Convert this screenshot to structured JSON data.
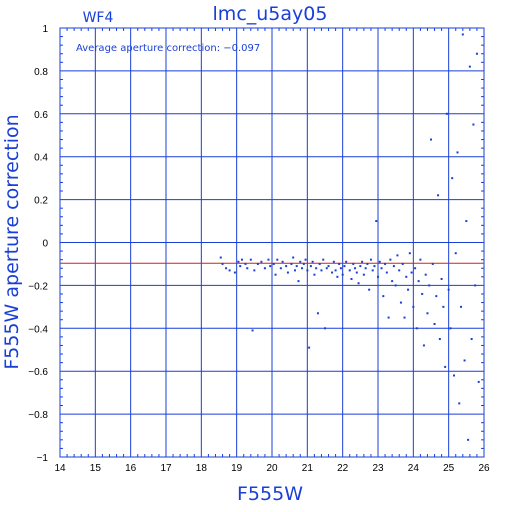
{
  "chart_data": {
    "type": "scatter",
    "title": "lmc_u5ay05",
    "panel_label": "WF4",
    "annotation": "Average aperture correction: −0.097",
    "xlabel": "F555W",
    "ylabel": "F555W aperture correction",
    "xlim": [
      14,
      26
    ],
    "ylim": [
      -1,
      1
    ],
    "x_ticks": [
      "14",
      "15",
      "16",
      "17",
      "18",
      "19",
      "20",
      "21",
      "22",
      "23",
      "24",
      "25",
      "26"
    ],
    "y_ticks": [
      "−1",
      "−0.8",
      "−0.6",
      "−0.4",
      "−0.2",
      "0",
      "0.2",
      "0.4",
      "0.6",
      "0.8",
      "1"
    ],
    "reference_line": {
      "y": -0.097,
      "color": "#d22020"
    },
    "grid": true,
    "colors": {
      "points": "#1a3fd6",
      "grid": "#1a3fd6",
      "title": "#1a3fd6",
      "axes": "#1a3fd6"
    },
    "series": [
      {
        "points": [
          [
            18.55,
            -0.07
          ],
          [
            18.6,
            -0.1
          ],
          [
            18.7,
            -0.12
          ],
          [
            18.8,
            -0.13
          ],
          [
            18.95,
            -0.14
          ],
          [
            19.05,
            -0.09
          ],
          [
            19.1,
            -0.11
          ],
          [
            19.15,
            -0.08
          ],
          [
            19.25,
            -0.1
          ],
          [
            19.3,
            -0.12
          ],
          [
            19.4,
            -0.08
          ],
          [
            19.45,
            -0.41
          ],
          [
            19.5,
            -0.13
          ],
          [
            19.6,
            -0.1
          ],
          [
            19.7,
            -0.09
          ],
          [
            19.8,
            -0.12
          ],
          [
            19.9,
            -0.08
          ],
          [
            19.95,
            -0.11
          ],
          [
            20.05,
            -0.1
          ],
          [
            20.1,
            -0.15
          ],
          [
            20.15,
            -0.08
          ],
          [
            20.25,
            -0.12
          ],
          [
            20.3,
            -0.09
          ],
          [
            20.4,
            -0.11
          ],
          [
            20.45,
            -0.14
          ],
          [
            20.55,
            -0.1
          ],
          [
            20.6,
            -0.07
          ],
          [
            20.65,
            -0.13
          ],
          [
            20.7,
            -0.11
          ],
          [
            20.75,
            -0.18
          ],
          [
            20.8,
            -0.09
          ],
          [
            20.85,
            -0.12
          ],
          [
            20.9,
            -0.1
          ],
          [
            20.95,
            -0.08
          ],
          [
            21.0,
            -0.13
          ],
          [
            21.05,
            -0.49
          ],
          [
            21.1,
            -0.11
          ],
          [
            21.15,
            -0.09
          ],
          [
            21.2,
            -0.15
          ],
          [
            21.25,
            -0.12
          ],
          [
            21.3,
            -0.33
          ],
          [
            21.35,
            -0.1
          ],
          [
            21.4,
            -0.13
          ],
          [
            21.45,
            -0.08
          ],
          [
            21.5,
            -0.4
          ],
          [
            21.55,
            -0.12
          ],
          [
            21.6,
            -0.11
          ],
          [
            21.7,
            -0.14
          ],
          [
            21.75,
            -0.09
          ],
          [
            21.8,
            -0.13
          ],
          [
            21.85,
            -0.16
          ],
          [
            21.9,
            -0.1
          ],
          [
            21.95,
            -0.12
          ],
          [
            22.0,
            -0.15
          ],
          [
            22.05,
            -0.11
          ],
          [
            22.1,
            -0.09
          ],
          [
            22.2,
            -0.13
          ],
          [
            22.25,
            -0.17
          ],
          [
            22.3,
            -0.1
          ],
          [
            22.35,
            -0.12
          ],
          [
            22.4,
            -0.14
          ],
          [
            22.45,
            -0.19
          ],
          [
            22.5,
            -0.11
          ],
          [
            22.55,
            -0.09
          ],
          [
            22.6,
            -0.15
          ],
          [
            22.65,
            -0.12
          ],
          [
            22.7,
            -0.1
          ],
          [
            22.75,
            -0.22
          ],
          [
            22.8,
            -0.08
          ],
          [
            22.85,
            -0.13
          ],
          [
            22.9,
            -0.11
          ],
          [
            22.95,
            0.1
          ],
          [
            23.0,
            -0.16
          ],
          [
            23.05,
            -0.09
          ],
          [
            23.1,
            -0.12
          ],
          [
            23.15,
            -0.25
          ],
          [
            23.2,
            -0.1
          ],
          [
            23.25,
            -0.14
          ],
          [
            23.3,
            -0.35
          ],
          [
            23.35,
            -0.08
          ],
          [
            23.4,
            -0.18
          ],
          [
            23.45,
            -0.11
          ],
          [
            23.5,
            -0.2
          ],
          [
            23.55,
            -0.06
          ],
          [
            23.6,
            -0.13
          ],
          [
            23.65,
            -0.28
          ],
          [
            23.7,
            -0.1
          ],
          [
            23.75,
            -0.35
          ],
          [
            23.8,
            -0.16
          ],
          [
            23.85,
            -0.22
          ],
          [
            23.9,
            -0.05
          ],
          [
            23.95,
            -0.14
          ],
          [
            24.0,
            -0.3
          ],
          [
            24.05,
            -0.12
          ],
          [
            24.1,
            -0.4
          ],
          [
            24.15,
            -0.18
          ],
          [
            24.2,
            -0.08
          ],
          [
            24.25,
            -0.24
          ],
          [
            24.3,
            -0.48
          ],
          [
            24.35,
            -0.15
          ],
          [
            24.4,
            -0.33
          ],
          [
            24.45,
            -0.2
          ],
          [
            24.5,
            0.48
          ],
          [
            24.55,
            -0.1
          ],
          [
            24.6,
            -0.38
          ],
          [
            24.65,
            -0.25
          ],
          [
            24.7,
            0.22
          ],
          [
            24.75,
            -0.45
          ],
          [
            24.8,
            -0.17
          ],
          [
            24.85,
            -0.3
          ],
          [
            24.9,
            -0.58
          ],
          [
            24.95,
            0.6
          ],
          [
            25.0,
            -0.22
          ],
          [
            25.05,
            -0.4
          ],
          [
            25.1,
            0.3
          ],
          [
            25.15,
            -0.62
          ],
          [
            25.2,
            -0.05
          ],
          [
            25.25,
            0.42
          ],
          [
            25.3,
            -0.75
          ],
          [
            25.35,
            -0.3
          ],
          [
            25.4,
            0.97
          ],
          [
            25.45,
            -0.55
          ],
          [
            25.5,
            0.1
          ],
          [
            25.55,
            -0.92
          ],
          [
            25.6,
            0.82
          ],
          [
            25.65,
            -0.45
          ],
          [
            25.7,
            0.55
          ],
          [
            25.75,
            -0.2
          ],
          [
            25.8,
            0.88
          ],
          [
            25.85,
            -0.65
          ]
        ]
      }
    ]
  }
}
